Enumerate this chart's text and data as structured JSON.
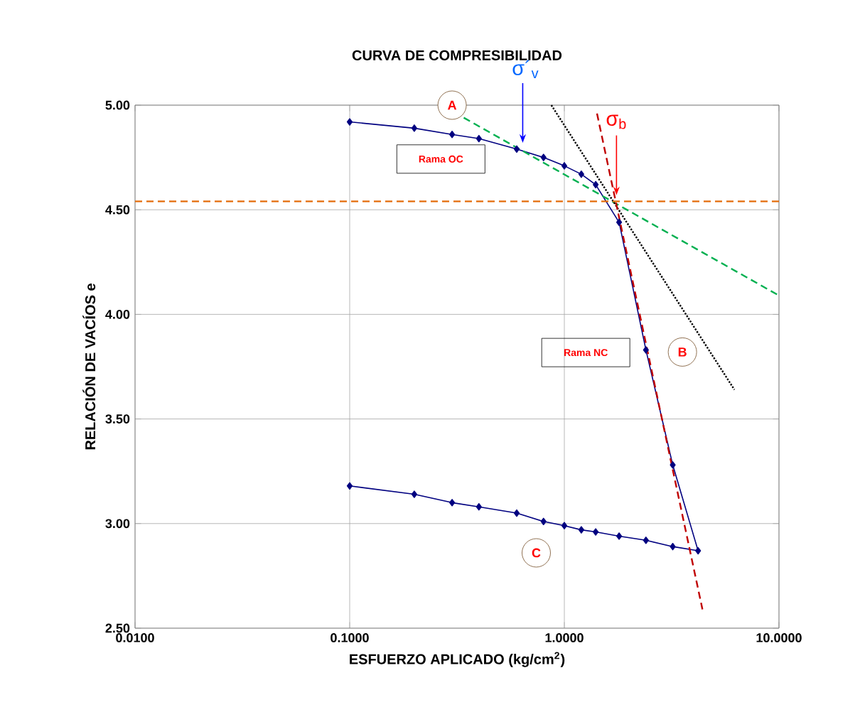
{
  "chart_data": {
    "type": "line",
    "title": "CURVA DE COMPRESIBILIDAD",
    "xlabel": "ESFUERZO APLICADO (kg/cm$^{2}$)",
    "ylabel": "RELACIÓN DE VACÍOS  e",
    "log": "x",
    "grid": true,
    "xlim": [
      0.01,
      10
    ],
    "ylim": [
      2.5,
      5
    ],
    "xticks": [
      {
        "value": 0.01,
        "label": "0.0100"
      },
      {
        "value": 0.1,
        "label": "0.1000"
      },
      {
        "value": 1,
        "label": "1.0000"
      },
      {
        "value": 10,
        "label": "10.0000"
      }
    ],
    "yticks": [
      {
        "value": 2.5,
        "label": "2.50"
      },
      {
        "value": 3,
        "label": "3.00"
      },
      {
        "value": 3.5,
        "label": "3.50"
      },
      {
        "value": 4,
        "label": "4.00"
      },
      {
        "value": 4.5,
        "label": "4.50"
      },
      {
        "value": 5,
        "label": "5.00"
      }
    ],
    "series": [
      {
        "color": "#000080",
        "marker": "diamond",
        "line_style": "solid",
        "x": [
          0.1,
          0.2,
          0.3,
          0.4,
          0.6,
          0.8,
          1,
          1.2,
          1.4,
          1.8,
          2.4,
          3.2,
          4.2,
          3.2,
          2.4,
          1.8,
          1.4,
          1.2,
          1,
          0.8,
          0.6,
          0.4,
          0.3,
          0.2,
          0.1
        ],
        "values": [
          4.92,
          4.89,
          4.86,
          4.84,
          4.79,
          4.75,
          4.71,
          4.67,
          4.62,
          4.44,
          3.83,
          3.28,
          2.87,
          2.89,
          2.92,
          2.94,
          2.96,
          2.97,
          2.99,
          3.01,
          3.05,
          3.08,
          3.1,
          3.14,
          3.18
        ]
      },
      {
        "color": "#00b050",
        "marker": "none",
        "line_style": "dashed",
        "x": [
          0.34,
          10
        ],
        "values": [
          4.94,
          4.09
        ]
      },
      {
        "color": "#000000",
        "marker": "none",
        "line_style": "dotted",
        "x": [
          0.87,
          6.2
        ],
        "values": [
          5.0,
          3.64
        ]
      },
      {
        "color": "#c00000",
        "marker": "none",
        "line_style": "dashed",
        "x": [
          1.42,
          4.4
        ],
        "values": [
          4.96,
          2.59
        ]
      }
    ],
    "ref_lines": [
      {
        "axis": "y",
        "value": 4.54,
        "color": "#e46c0a",
        "line_style": "dashed"
      }
    ],
    "annotations": [
      {
        "text": "A",
        "x": 0.3,
        "y": 5.0
      },
      {
        "text": "B",
        "x": 3.55,
        "y": 3.82
      },
      {
        "text": "C",
        "x": 0.74,
        "y": 2.86
      },
      "Rama OC",
      "Rama NC",
      {
        "text": "σ´$_{v}$",
        "x": 0.64,
        "y": 4.82
      },
      {
        "text": "σ$_{b}$",
        "x": 1.75,
        "y": 4.57
      }
    ]
  }
}
